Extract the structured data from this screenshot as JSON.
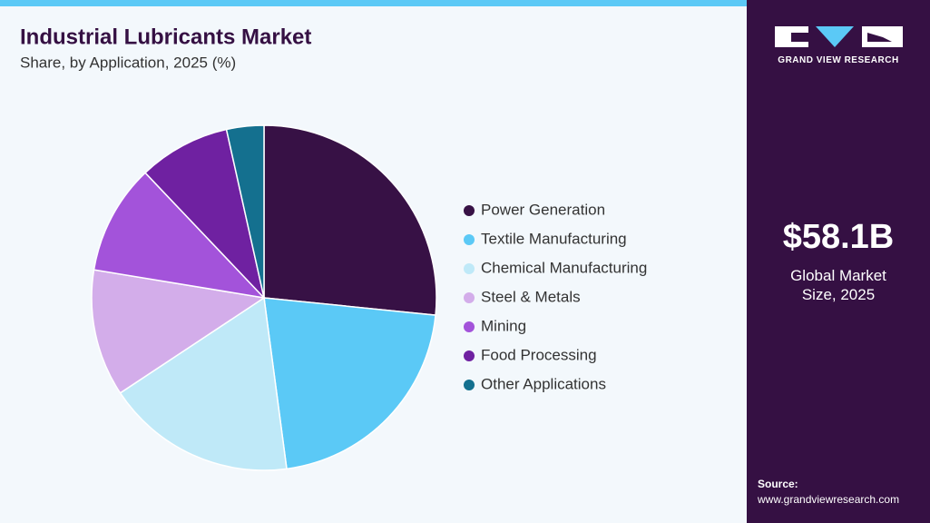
{
  "chart_data": {
    "type": "pie",
    "title": "Industrial Lubricants Market",
    "subtitle": "Share, by Application, 2025 (%)",
    "categories": [
      "Power Generation",
      "Textile Manufacturing",
      "Chemical Manufacturing",
      "Steel & Metals",
      "Mining",
      "Food Processing",
      "Other Applications"
    ],
    "values": [
      26.6,
      21.3,
      17.8,
      11.9,
      10.3,
      8.6,
      3.5
    ],
    "colors": [
      "#371145",
      "#5bc9f6",
      "#bfe9f8",
      "#d3adea",
      "#a353da",
      "#6f21a1",
      "#14708f"
    ]
  },
  "sidebar": {
    "brand": "GRAND VIEW RESEARCH",
    "market_size": "$58.1B",
    "market_size_label": "Global Market Size, 2025",
    "source_label": "Source:",
    "source_url": "www.grandviewresearch.com"
  }
}
